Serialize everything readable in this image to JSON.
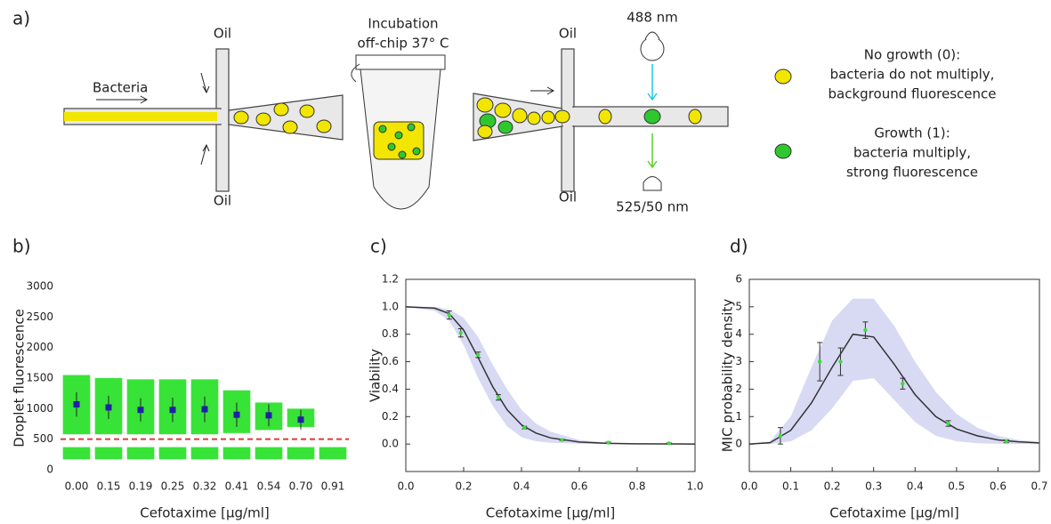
{
  "diagram": {
    "panel_label": "a)",
    "oil": [
      "Oil",
      "Oil",
      "Oil",
      "Oil"
    ],
    "bacteria": "Bacteria",
    "incubation": [
      "Incubation",
      "off-chip 37° C"
    ],
    "excitation": "488 nm",
    "emission": "525/50 nm",
    "no_growth": [
      "No growth (0):",
      "bacteria do not multiply,",
      "background fluorescence"
    ],
    "growth": [
      "Growth (1):",
      "bacteria multiply,",
      "strong fluorescence"
    ]
  },
  "chart_data": [
    {
      "type": "strip",
      "panel_label": "b)",
      "xlabel": "Cefotaxime [μg/ml]",
      "ylabel": "Droplet fluorescence",
      "categories": [
        "0.00",
        "0.15",
        "0.19",
        "0.25",
        "0.32",
        "0.41",
        "0.54",
        "0.70",
        "0.91"
      ],
      "ylim": [
        0,
        3000
      ],
      "yticks": [
        0,
        500,
        1000,
        1500,
        2000,
        2500,
        3000
      ],
      "frame": false,
      "color": "#22e022",
      "mean_color": "#1f1fa8",
      "threshold": 500,
      "threshold_color": "#e03a3a",
      "low_cluster": [
        [
          170,
          370
        ],
        [
          170,
          370
        ],
        [
          170,
          370
        ],
        [
          170,
          370
        ],
        [
          170,
          370
        ],
        [
          170,
          370
        ],
        [
          170,
          370
        ],
        [
          170,
          370
        ],
        [
          170,
          370
        ]
      ],
      "high_cluster": [
        [
          580,
          1550
        ],
        [
          580,
          1500
        ],
        [
          580,
          1480
        ],
        [
          580,
          1480
        ],
        [
          580,
          1480
        ],
        [
          600,
          1300
        ],
        [
          650,
          1100
        ],
        [
          700,
          1000
        ],
        null
      ],
      "means": [
        1070,
        1020,
        980,
        980,
        990,
        900,
        890,
        820,
        null
      ],
      "errors": [
        200,
        190,
        190,
        200,
        210,
        200,
        180,
        160,
        null
      ]
    },
    {
      "type": "line",
      "panel_label": "c)",
      "xlabel": "Cefotaxime [μg/ml]",
      "ylabel": "Viability",
      "xlim": [
        0,
        1
      ],
      "ylim": [
        -0.2,
        1.2
      ],
      "frame": true,
      "xticks": [
        {
          "value": 0,
          "label": "0.0"
        },
        {
          "value": 0.2,
          "label": "0.2"
        },
        {
          "value": 0.4,
          "label": "0.4"
        },
        {
          "value": 0.6,
          "label": "0.6"
        },
        {
          "value": 0.8,
          "label": "0.8"
        },
        {
          "value": 1,
          "label": "1.0"
        }
      ],
      "yticks": [
        {
          "value": 0,
          "label": "0.0"
        },
        {
          "value": 0.2,
          "label": "0.2"
        },
        {
          "value": 0.4,
          "label": "0.4"
        },
        {
          "value": 0.6,
          "label": "0.6"
        },
        {
          "value": 0.8,
          "label": "0.8"
        },
        {
          "value": 1,
          "label": "1.0"
        },
        {
          "value": 1.2,
          "label": "1.2"
        }
      ],
      "x": [
        0,
        0.1,
        0.15,
        0.2,
        0.25,
        0.3,
        0.35,
        0.4,
        0.45,
        0.5,
        0.6,
        0.7,
        0.8,
        0.9,
        1.0
      ],
      "values": [
        1.0,
        0.99,
        0.95,
        0.83,
        0.63,
        0.42,
        0.25,
        0.14,
        0.08,
        0.045,
        0.015,
        0.005,
        0.002,
        0.001,
        0.0
      ],
      "band_upper": [
        1.0,
        1.0,
        0.98,
        0.92,
        0.78,
        0.58,
        0.4,
        0.25,
        0.15,
        0.09,
        0.03,
        0.01,
        0.004,
        0.002,
        0.001
      ],
      "band_lower": [
        1.0,
        0.97,
        0.9,
        0.72,
        0.48,
        0.28,
        0.13,
        0.05,
        0.02,
        0.01,
        0.002,
        0.0,
        0.0,
        0.0,
        0.0
      ],
      "points_x": [
        0.15,
        0.19,
        0.25,
        0.32,
        0.41,
        0.54,
        0.7,
        0.91
      ],
      "points_y": [
        0.94,
        0.81,
        0.65,
        0.34,
        0.12,
        0.03,
        0.01,
        0.005
      ],
      "points_err": [
        0.03,
        0.03,
        0.02,
        0.02,
        0.01,
        0.005,
        0.005,
        0.003
      ],
      "line_color": "#333333",
      "band_color": "#c8caf0",
      "point_color": "#3ddc3d"
    },
    {
      "type": "line",
      "panel_label": "d)",
      "xlabel": "Cefotaxime [μg/ml]",
      "ylabel": "MIC probability density",
      "xlim": [
        0,
        0.7
      ],
      "ylim": [
        -1,
        6
      ],
      "frame": true,
      "xticks": [
        {
          "value": 0,
          "label": "0.0"
        },
        {
          "value": 0.1,
          "label": "0.1"
        },
        {
          "value": 0.2,
          "label": "0.2"
        },
        {
          "value": 0.3,
          "label": "0.3"
        },
        {
          "value": 0.4,
          "label": "0.4"
        },
        {
          "value": 0.5,
          "label": "0.5"
        },
        {
          "value": 0.6,
          "label": "0.6"
        },
        {
          "value": 0.7,
          "label": "0.7"
        }
      ],
      "yticks": [
        0,
        1,
        2,
        3,
        4,
        5,
        6
      ],
      "x": [
        0,
        0.05,
        0.1,
        0.15,
        0.2,
        0.25,
        0.3,
        0.35,
        0.4,
        0.45,
        0.5,
        0.55,
        0.6,
        0.65,
        0.7
      ],
      "values": [
        0,
        0.05,
        0.5,
        1.5,
        2.8,
        4.0,
        3.9,
        2.9,
        1.8,
        1.0,
        0.55,
        0.3,
        0.15,
        0.08,
        0.04
      ],
      "band_upper": [
        0,
        0.1,
        1.0,
        2.8,
        4.5,
        5.3,
        5.3,
        4.3,
        3.0,
        1.9,
        1.1,
        0.6,
        0.3,
        0.15,
        0.08
      ],
      "band_lower": [
        0,
        0,
        0.1,
        0.5,
        1.3,
        2.3,
        2.4,
        1.6,
        0.8,
        0.3,
        0.1,
        0.03,
        0.01,
        0,
        0
      ],
      "points_x": [
        0.075,
        0.17,
        0.22,
        0.28,
        0.37,
        0.48,
        0.62
      ],
      "points_y": [
        0.3,
        3.0,
        3.0,
        4.15,
        2.2,
        0.75,
        0.1
      ],
      "points_err": [
        0.3,
        0.7,
        0.5,
        0.3,
        0.2,
        0.1,
        0.05
      ],
      "line_color": "#333333",
      "band_color": "#c8caf0",
      "point_color": "#3ddc3d"
    }
  ]
}
